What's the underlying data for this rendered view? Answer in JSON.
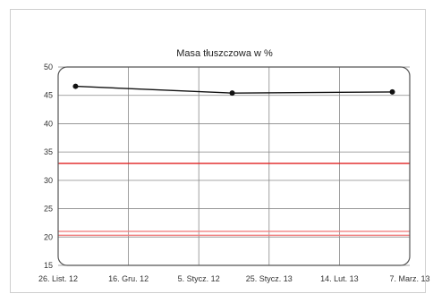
{
  "chart_data": {
    "type": "line",
    "title": "Masa tłuszczowa w %",
    "xlabel": "",
    "ylabel": "",
    "ylim": [
      15,
      50
    ],
    "yticks": [
      15,
      20,
      25,
      30,
      35,
      40,
      45,
      50
    ],
    "x_tick_labels": [
      "26. List. 12",
      "16. Gru. 12",
      "5. Stycz. 12",
      "25. Stycz. 13",
      "14. Lut. 13",
      "7. Marz. 13"
    ],
    "x_range": [
      "2012-11-26",
      "2013-03-07"
    ],
    "series": [
      {
        "color": "#111111",
        "points": [
          {
            "x": "2012-12-01",
            "y": 46.6
          },
          {
            "x": "2013-01-15",
            "y": 45.4
          },
          {
            "x": "2013-03-02",
            "y": 45.6
          }
        ]
      }
    ],
    "reference_lines": [
      {
        "y": 33,
        "color": "#e02020"
      },
      {
        "y": 21,
        "color": "#f08080"
      },
      {
        "y": 20.3,
        "color": "#f08080"
      }
    ],
    "grid": true
  }
}
